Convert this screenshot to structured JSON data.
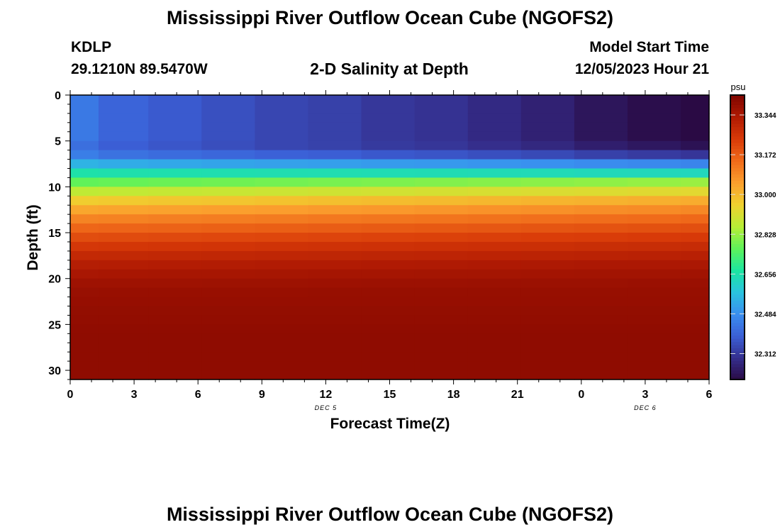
{
  "header": {
    "title": "Mississippi River Outflow Ocean Cube (NGOFS2)",
    "station_id": "KDLP",
    "station_coords": "29.1210N  89.5470W",
    "subtitle": "2-D Salinity at Depth",
    "model_start_label": "Model Start Time",
    "model_start_value": "12/05/2023 Hour 21"
  },
  "footer": {
    "title": "Mississippi River Outflow Ocean Cube (NGOFS2)"
  },
  "colors": {
    "colormap": [
      "#2a0a44",
      "#352f8e",
      "#3b5fd6",
      "#3a8ff0",
      "#2ac3df",
      "#1ce6a0",
      "#5ff25a",
      "#b8ee36",
      "#efd12f",
      "#fb9e2d",
      "#f06b1a",
      "#d83a08",
      "#b01a03",
      "#800500"
    ]
  },
  "chart_data": {
    "type": "heatmap",
    "xlabel": "Forecast Time(Z)",
    "ylabel": "Depth (ft)",
    "x_tick_labels": [
      "0",
      "3",
      "6",
      "9",
      "12",
      "15",
      "18",
      "21",
      "0",
      "3",
      "6"
    ],
    "x_date_labels": [
      {
        "at": 12,
        "label": "DEC 5"
      },
      {
        "at": 27,
        "label": "DEC 6"
      }
    ],
    "xlim": [
      0,
      30
    ],
    "ylim": [
      0,
      31
    ],
    "y_tick_labels": [
      0,
      5,
      10,
      15,
      20,
      25,
      30
    ],
    "y_inverted": true,
    "colorbar": {
      "unit": "psu",
      "range": [
        32.2,
        33.43
      ],
      "tick_labels": [
        "32.312",
        "32.484",
        "32.656",
        "32.828",
        "33.000",
        "33.172",
        "33.344"
      ]
    },
    "x_cell_edges": [
      0,
      1.33,
      3.67,
      6.17,
      8.67,
      11.17,
      13.67,
      16.17,
      18.67,
      21.17,
      23.67,
      26.17,
      28.67,
      30
    ],
    "surface_salinity": [
      32.44,
      32.4,
      32.38,
      32.36,
      32.34,
      32.33,
      32.31,
      32.3,
      32.28,
      32.26,
      32.23,
      32.21,
      32.19
    ],
    "salinity_profile": [
      {
        "depth": 0,
        "value": 32.44
      },
      {
        "depth": 5,
        "value": 32.44
      },
      {
        "depth": 6,
        "value": 32.4
      },
      {
        "depth": 7,
        "value": 32.5
      },
      {
        "depth": 8,
        "value": 32.6
      },
      {
        "depth": 9,
        "value": 32.72
      },
      {
        "depth": 10,
        "value": 32.82
      },
      {
        "depth": 11,
        "value": 32.93
      },
      {
        "depth": 12,
        "value": 33.0
      },
      {
        "depth": 13,
        "value": 33.07
      },
      {
        "depth": 14,
        "value": 33.13
      },
      {
        "depth": 15,
        "value": 33.18
      },
      {
        "depth": 16,
        "value": 33.23
      },
      {
        "depth": 17,
        "value": 33.27
      },
      {
        "depth": 18,
        "value": 33.31
      },
      {
        "depth": 19,
        "value": 33.34
      },
      {
        "depth": 20,
        "value": 33.36
      },
      {
        "depth": 21,
        "value": 33.38
      },
      {
        "depth": 23,
        "value": 33.39
      },
      {
        "depth": 26,
        "value": 33.4
      },
      {
        "depth": 31,
        "value": 33.4
      }
    ]
  }
}
